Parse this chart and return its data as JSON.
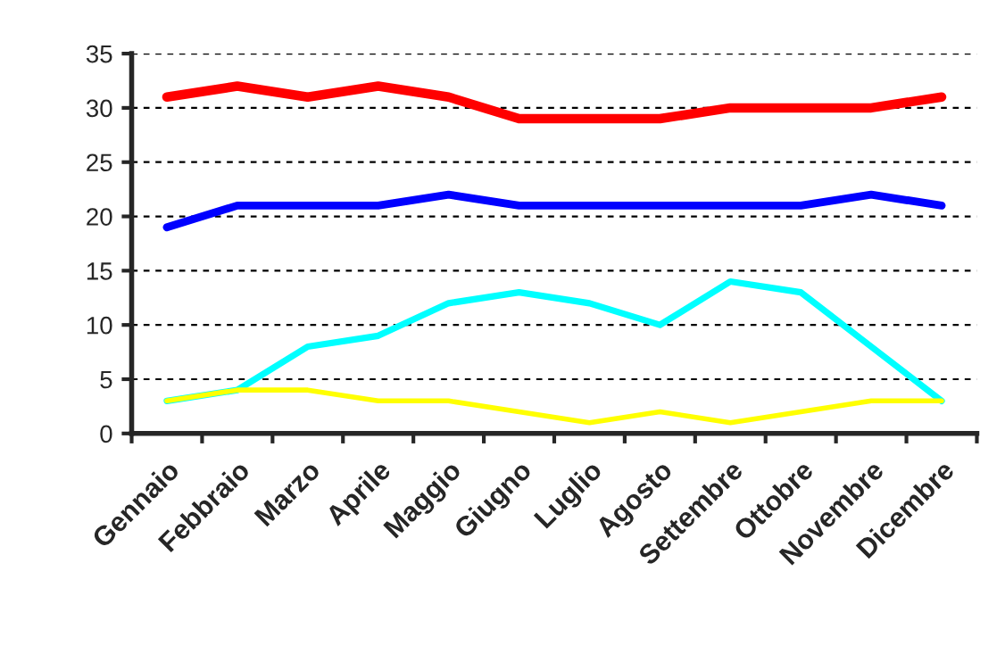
{
  "chart_data": {
    "type": "line",
    "categories": [
      "Gennaio",
      "Febbraio",
      "Marzo",
      "Aprile",
      "Maggio",
      "Giugno",
      "Luglio",
      "Agosto",
      "Settembre",
      "Ottobre",
      "Novembre",
      "Dicembre"
    ],
    "series": [
      {
        "color": "#ff0000",
        "values": [
          31,
          32,
          31,
          32,
          31,
          29,
          29,
          29,
          30,
          30,
          30,
          31
        ]
      },
      {
        "color": "#0000ff",
        "values": [
          19,
          21,
          21,
          21,
          22,
          21,
          21,
          21,
          21,
          21,
          22,
          21
        ]
      },
      {
        "color": "#00ffff",
        "values": [
          3,
          4,
          8,
          9,
          12,
          13,
          12,
          10,
          14,
          13,
          8,
          3
        ]
      },
      {
        "color": "#ffff00",
        "values": [
          3,
          4,
          4,
          3,
          3,
          2,
          1,
          2,
          1,
          2,
          3,
          3
        ]
      }
    ],
    "ylim": [
      0,
      35
    ],
    "yticks": [
      0,
      5,
      10,
      15,
      20,
      25,
      30,
      35
    ],
    "grid": "y",
    "legend": false,
    "marker": "none",
    "line_style": "solid"
  }
}
